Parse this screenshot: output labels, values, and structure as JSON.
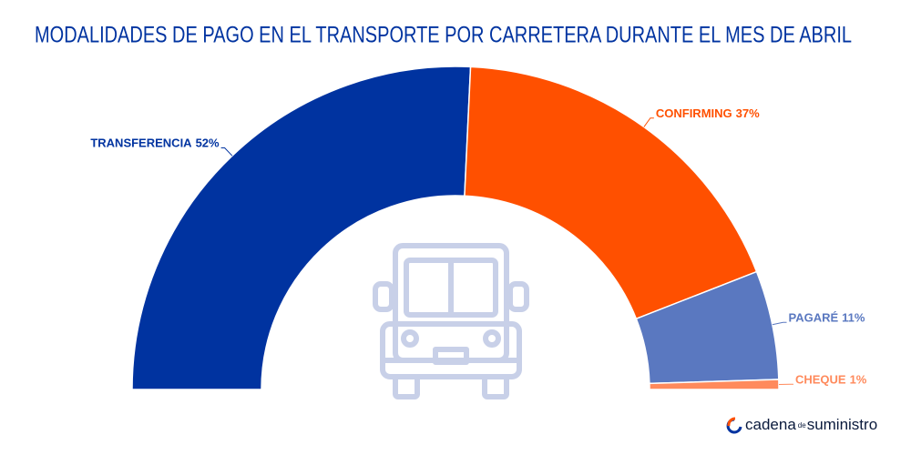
{
  "chart_data": {
    "type": "half-donut",
    "title": "MODALIDADES DE PAGO EN EL TRANSPORTE POR CARRETERA DURANTE EL MES DE ABRIL",
    "categories": [
      "TRANSFERENCIA",
      "CONFIRMING",
      "PAGARÉ",
      "CHEQUE"
    ],
    "values": [
      52,
      37,
      11,
      1
    ],
    "value_labels": [
      "52%",
      "37%",
      "11%",
      "1%"
    ],
    "colors": [
      "#0033a0",
      "#ff5000",
      "#5a78c0",
      "#ff8a5c"
    ]
  },
  "brand": {
    "name": "cadena",
    "joiner": "de",
    "suffix": "suministro"
  }
}
